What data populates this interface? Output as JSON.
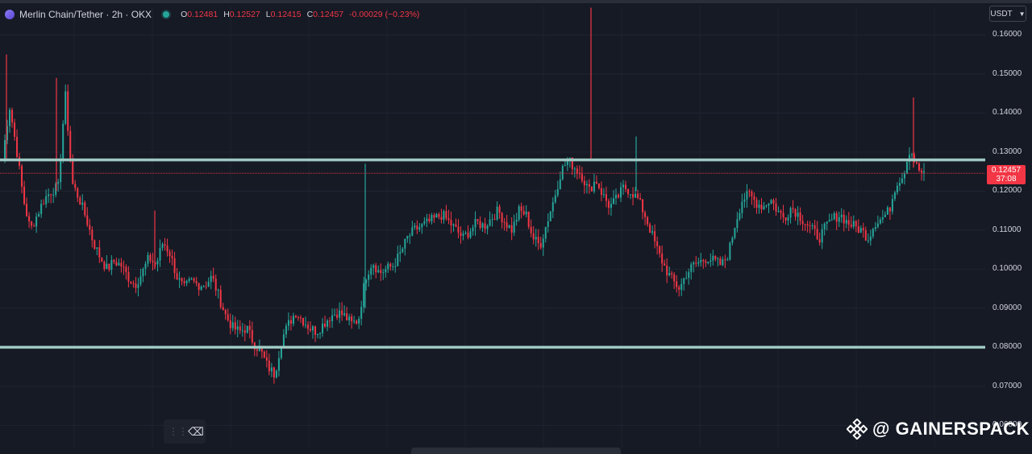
{
  "legend": {
    "symbol": "Merlin Chain/Tether · 2h · OKX",
    "open_label": "O",
    "open": "0.12481",
    "high_label": "H",
    "high": "0.12527",
    "low_label": "L",
    "low": "0.12415",
    "close_label": "C",
    "close": "0.12457",
    "change": "-0.00029 (−0.23%)"
  },
  "currency": "USDT",
  "last_price": {
    "value": "0.12457",
    "countdown": "37:08"
  },
  "watermark": "@ GAINERSPACK",
  "colors": {
    "up": "#26a69a",
    "down": "#f23645",
    "level": "#9ec9c2",
    "background": "#161a25"
  },
  "chart_data": {
    "type": "candlestick",
    "y_ticks": [
      "0.16000",
      "0.15000",
      "0.14000",
      "0.13000",
      "0.12000",
      "0.11000",
      "0.10000",
      "0.09000",
      "0.08000",
      "0.07000",
      "0.06000"
    ],
    "ylim": [
      0.0545,
      0.1673
    ],
    "horizontal_levels": [
      0.128,
      0.08
    ],
    "last_price": 0.12457,
    "price_path": [
      0.128,
      0.142,
      0.131,
      0.118,
      0.11,
      0.114,
      0.118,
      0.12,
      0.121,
      0.145,
      0.122,
      0.118,
      0.113,
      0.107,
      0.103,
      0.1,
      0.102,
      0.101,
      0.098,
      0.096,
      0.099,
      0.103,
      0.101,
      0.107,
      0.104,
      0.098,
      0.095,
      0.097,
      0.096,
      0.096,
      0.098,
      0.093,
      0.088,
      0.085,
      0.084,
      0.085,
      0.081,
      0.079,
      0.075,
      0.073,
      0.082,
      0.086,
      0.089,
      0.087,
      0.085,
      0.084,
      0.086,
      0.088,
      0.089,
      0.088,
      0.086,
      0.087,
      0.098,
      0.102,
      0.099,
      0.1,
      0.101,
      0.104,
      0.108,
      0.11,
      0.111,
      0.112,
      0.113,
      0.114,
      0.112,
      0.11,
      0.108,
      0.11,
      0.112,
      0.111,
      0.113,
      0.115,
      0.112,
      0.11,
      0.115,
      0.114,
      0.108,
      0.106,
      0.112,
      0.118,
      0.125,
      0.128,
      0.126,
      0.124,
      0.12,
      0.123,
      0.119,
      0.116,
      0.118,
      0.121,
      0.12,
      0.118,
      0.114,
      0.109,
      0.104,
      0.1,
      0.097,
      0.095,
      0.099,
      0.101,
      0.102,
      0.103,
      0.102,
      0.101,
      0.104,
      0.112,
      0.118,
      0.119,
      0.117,
      0.116,
      0.118,
      0.115,
      0.113,
      0.116,
      0.114,
      0.112,
      0.11,
      0.108,
      0.111,
      0.113,
      0.114,
      0.112,
      0.111,
      0.11,
      0.108,
      0.112,
      0.113,
      0.115,
      0.122,
      0.124,
      0.131,
      0.126,
      0.124
    ]
  }
}
